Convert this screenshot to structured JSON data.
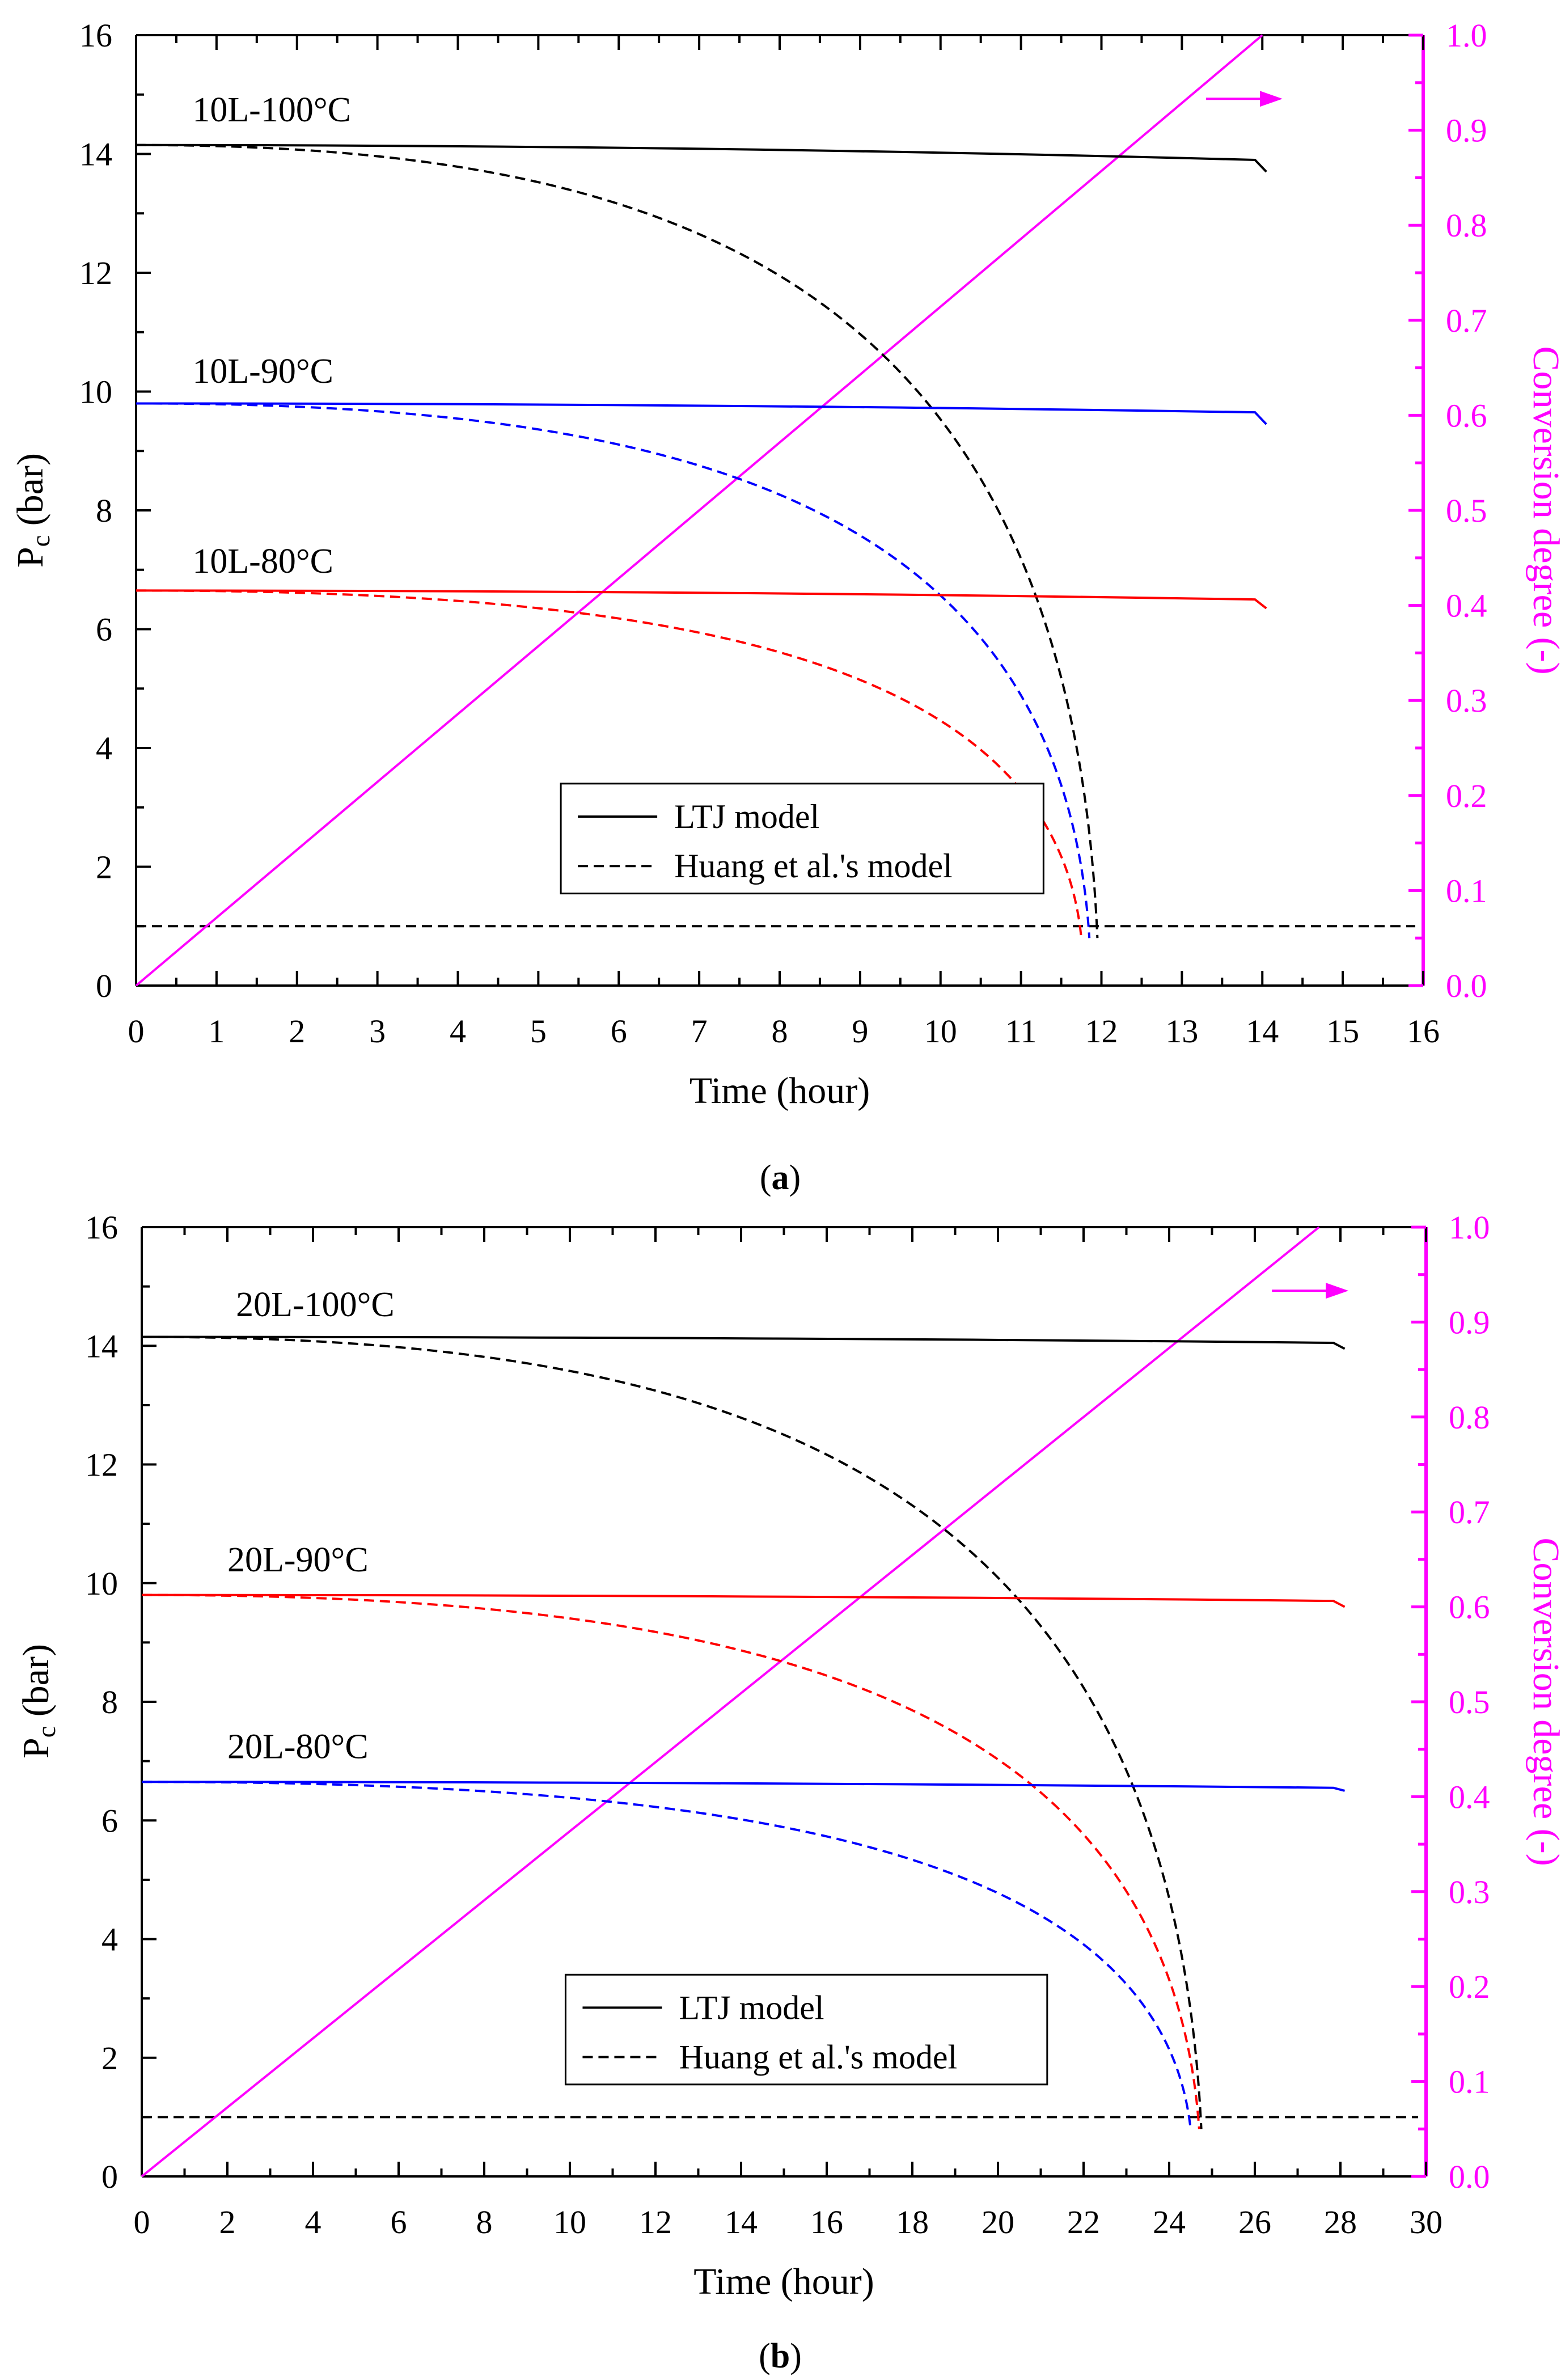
{
  "chart_data": [
    {
      "id": "a",
      "type": "line",
      "caption": "a",
      "xlabel": "Time (hour)",
      "ylabel_main": "P",
      "ylabel_sub": "c",
      "ylabel_unit": "(bar)",
      "y2label": "Conversion degree (-)",
      "xlim": [
        0,
        16
      ],
      "ylim": [
        0,
        16
      ],
      "y2lim": [
        0,
        1
      ],
      "xticks": [
        0,
        1,
        2,
        3,
        4,
        5,
        6,
        7,
        8,
        9,
        10,
        11,
        12,
        13,
        14,
        15,
        16
      ],
      "yticks": [
        0,
        2,
        4,
        6,
        8,
        10,
        12,
        14,
        16
      ],
      "y2ticks": [
        "0.0",
        "0.1",
        "0.2",
        "0.3",
        "0.4",
        "0.5",
        "0.6",
        "0.7",
        "0.8",
        "0.9",
        "1.0"
      ],
      "legend": {
        "solid": "LTJ model",
        "dashed": "Huang et al.'s model",
        "placement": "lower-center"
      },
      "threshold_y": 1,
      "conversion_line": {
        "x0": 0,
        "x1": 14,
        "color": "#ff00ff",
        "arrow_at": [
          13.3,
          0.933
        ]
      },
      "series": [
        {
          "name": "10L-100°C",
          "color": "#000000",
          "p0": 14.15,
          "ltj_end_x": 14.05,
          "ltj_end_y": 13.9,
          "ltj_drop": 13.7,
          "huang_end_x": 11.95,
          "label_at": [
            0.7,
            14.55
          ]
        },
        {
          "name": "10L-90°C",
          "color": "#0000ff",
          "p0": 9.8,
          "ltj_end_x": 14.05,
          "ltj_end_y": 9.65,
          "ltj_drop": 9.45,
          "huang_end_x": 11.85,
          "label_at": [
            0.7,
            10.15
          ]
        },
        {
          "name": "10L-80°C",
          "color": "#ff0000",
          "p0": 6.65,
          "ltj_end_x": 14.05,
          "ltj_end_y": 6.5,
          "ltj_drop": 6.35,
          "huang_end_x": 11.75,
          "label_at": [
            0.7,
            6.95
          ]
        }
      ]
    },
    {
      "id": "b",
      "type": "line",
      "caption": "b",
      "xlabel": "Time (hour)",
      "ylabel_main": "P",
      "ylabel_sub": "c",
      "ylabel_unit": "(bar)",
      "y2label": "Conversion degree (-)",
      "xlim": [
        0,
        30
      ],
      "ylim": [
        0,
        16
      ],
      "y2lim": [
        0,
        1
      ],
      "xticks": [
        0,
        2,
        4,
        6,
        8,
        10,
        12,
        14,
        16,
        18,
        20,
        22,
        24,
        26,
        28,
        30
      ],
      "yticks": [
        0,
        2,
        4,
        6,
        8,
        10,
        12,
        14,
        16
      ],
      "y2ticks": [
        "0.0",
        "0.1",
        "0.2",
        "0.3",
        "0.4",
        "0.5",
        "0.6",
        "0.7",
        "0.8",
        "0.9",
        "1.0"
      ],
      "legend": {
        "solid": "LTJ model",
        "dashed": "Huang et al.'s model",
        "placement": "lower-center"
      },
      "threshold_y": 1,
      "conversion_line": {
        "x0": 0,
        "x1": 27.5,
        "color": "#ff00ff",
        "arrow_at": [
          26.4,
          0.933
        ]
      },
      "series": [
        {
          "name": "20L-100°C",
          "color": "#000000",
          "p0": 14.15,
          "ltj_end_x": 28.1,
          "ltj_end_y": 14.05,
          "ltj_drop": 13.95,
          "huang_end_x": 24.75,
          "label_at": [
            2.2,
            14.5
          ]
        },
        {
          "name": "20L-90°C",
          "color": "#ff0000",
          "p0": 9.8,
          "ltj_end_x": 28.1,
          "ltj_end_y": 9.7,
          "ltj_drop": 9.6,
          "huang_end_x": 24.7,
          "label_at": [
            2.0,
            10.2
          ]
        },
        {
          "name": "20L-80°C",
          "color": "#0000ff",
          "p0": 6.65,
          "ltj_end_x": 28.1,
          "ltj_end_y": 6.55,
          "ltj_drop": 6.5,
          "huang_end_x": 24.5,
          "label_at": [
            2.0,
            7.05
          ]
        }
      ]
    }
  ]
}
